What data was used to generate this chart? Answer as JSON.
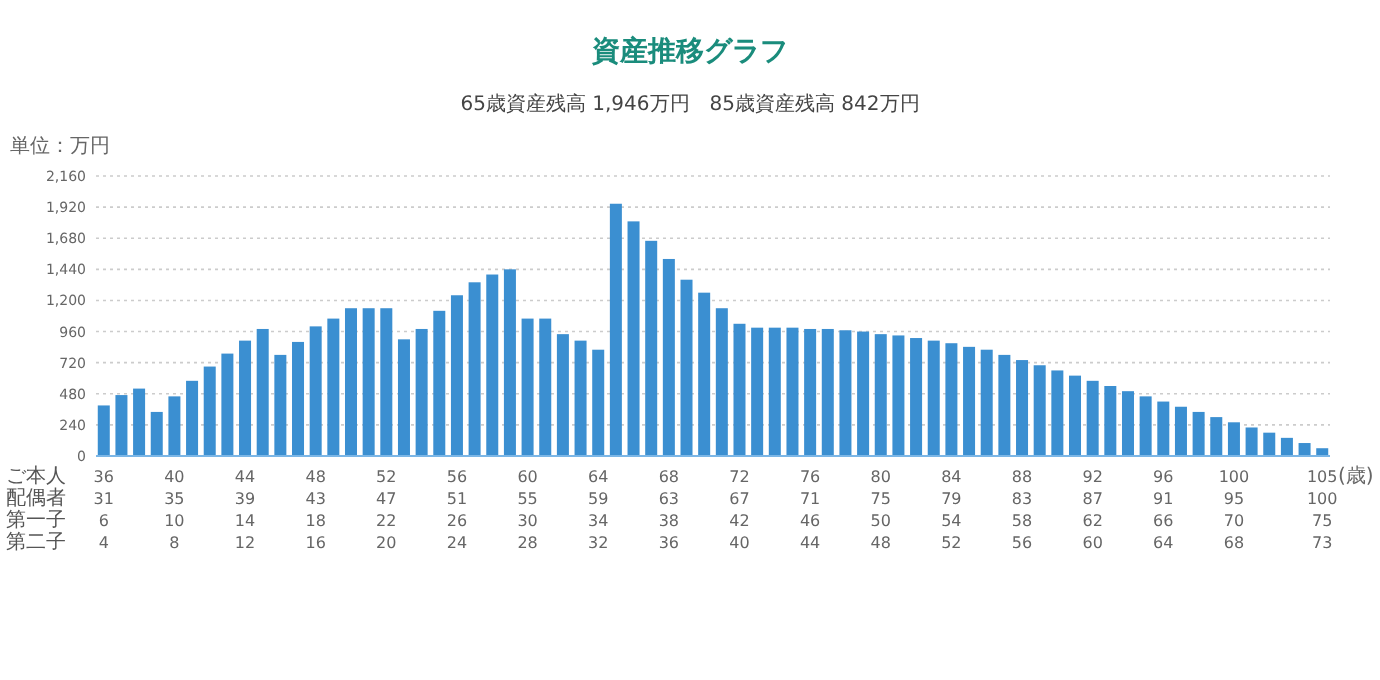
{
  "chart_data": {
    "type": "bar",
    "title": "資産推移グラフ",
    "subtitle": "65歳資産残高 1,946万円　85歳資産残高 842万円",
    "ylabel": "単位：万円",
    "xlabel": "(歳)",
    "categories": [
      "36\n31\n6\n4",
      null,
      null,
      null,
      "40\n35\n10\n8",
      null,
      null,
      null,
      "44\n39\n14\n12",
      null,
      null,
      null,
      "48\n43\n18\n16",
      null,
      null,
      null,
      "52\n47\n22\n20",
      null,
      null,
      null,
      "56\n51\n26\n24",
      null,
      null,
      null,
      "60\n55\n30\n28",
      null,
      null,
      null,
      "64\n59\n34\n32",
      null,
      null,
      null,
      "68\n63\n38\n36",
      null,
      null,
      null,
      "72\n67\n42\n40",
      null,
      null,
      null,
      "76\n71\n46\n44",
      null,
      null,
      null,
      "80\n75\n50\n48",
      null,
      null,
      null,
      "84\n79\n54\n52",
      null,
      null,
      null,
      "88\n83\n58\n56",
      null,
      null,
      null,
      "92\n87\n62\n60",
      null,
      null,
      null,
      "96\n91\n66\n64",
      null,
      null,
      null,
      "100\n95\n70\n68",
      null,
      null,
      null,
      null,
      "105\n100\n75\n73"
    ],
    "values": [
      390,
      470,
      520,
      340,
      460,
      580,
      690,
      790,
      890,
      980,
      780,
      880,
      1000,
      1060,
      1140,
      1140,
      1140,
      900,
      980,
      1120,
      1240,
      1340,
      1400,
      1440,
      1060,
      1060,
      940,
      890,
      820,
      1946,
      1810,
      1660,
      1520,
      1360,
      1260,
      1140,
      1020,
      990,
      990,
      990,
      980,
      980,
      970,
      960,
      940,
      930,
      910,
      890,
      870,
      842,
      820,
      780,
      740,
      700,
      660,
      620,
      580,
      540,
      500,
      460,
      420,
      380,
      340,
      300,
      260,
      220,
      180,
      140,
      100,
      60
    ],
    "color": "#3b8fd1",
    "ylim": [
      0,
      2160
    ],
    "yticks": [
      0,
      240,
      480,
      720,
      960,
      {
        "value": 1200,
        "label": "1,200"
      },
      {
        "value": 1440,
        "label": "1,440"
      },
      {
        "value": 1680,
        "label": "1,680"
      },
      {
        "value": 1920,
        "label": "1,920"
      },
      {
        "value": 2160,
        "label": "2,160"
      }
    ],
    "grid": "y",
    "annotations": [
      "ご本人",
      "配偶者",
      "第一子",
      "第二子"
    ]
  }
}
